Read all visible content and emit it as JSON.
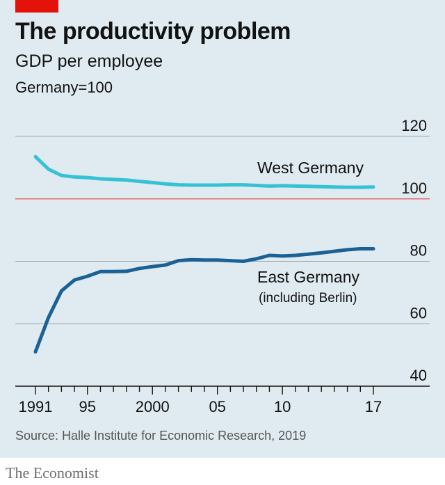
{
  "header": {
    "title": "The productivity problem",
    "subtitle": "GDP per employee",
    "unit": "Germany=100"
  },
  "footer": {
    "source": "Source: Halle Institute for Economic Research, 2019",
    "brand": "The Economist"
  },
  "colors": {
    "panel": "#e0ebf1",
    "accent_red": "#e3120b",
    "west": "#36c2d5",
    "east": "#1b6196",
    "reference_line": "#e86a6a",
    "grid": "#9aa6ad",
    "text": "#121212"
  },
  "chart_data": {
    "type": "line",
    "x_range": [
      1991,
      2017
    ],
    "y_range": [
      40,
      120
    ],
    "y_ticks": [
      40,
      60,
      80,
      100,
      120
    ],
    "y_tick_labels": [
      "40",
      "60",
      "80",
      "100",
      "120"
    ],
    "x_tick_labels": [
      {
        "year": 1991,
        "label": "1991"
      },
      {
        "year": 1995,
        "label": "95"
      },
      {
        "year": 2000,
        "label": "2000"
      },
      {
        "year": 2005,
        "label": "05"
      },
      {
        "year": 2010,
        "label": "10"
      },
      {
        "year": 2017,
        "label": "17"
      }
    ],
    "reference_value": 100,
    "series": [
      {
        "name": "West Germany",
        "label_lines": [
          "West Germany"
        ],
        "x": [
          1991,
          1992,
          1993,
          1994,
          1995,
          1996,
          1997,
          1998,
          1999,
          2000,
          2001,
          2002,
          2003,
          2004,
          2005,
          2006,
          2007,
          2008,
          2009,
          2010,
          2011,
          2012,
          2013,
          2014,
          2015,
          2016,
          2017
        ],
        "values": [
          113.5,
          109.5,
          107.5,
          107.0,
          106.8,
          106.4,
          106.2,
          106.0,
          105.6,
          105.2,
          104.8,
          104.5,
          104.4,
          104.4,
          104.4,
          104.5,
          104.5,
          104.3,
          104.1,
          104.2,
          104.1,
          104.0,
          103.9,
          103.8,
          103.7,
          103.7,
          103.8
        ]
      },
      {
        "name": "East Germany",
        "label_lines": [
          "East Germany",
          "(including Berlin)"
        ],
        "x": [
          1991,
          1992,
          1993,
          1994,
          1995,
          1996,
          1997,
          1998,
          1999,
          2000,
          2001,
          2002,
          2003,
          2004,
          2005,
          2006,
          2007,
          2008,
          2009,
          2010,
          2011,
          2012,
          2013,
          2014,
          2015,
          2016,
          2017
        ],
        "values": [
          51.0,
          62.0,
          70.5,
          74.0,
          75.2,
          76.7,
          76.7,
          76.8,
          77.7,
          78.3,
          78.8,
          80.2,
          80.5,
          80.4,
          80.4,
          80.2,
          80.0,
          80.8,
          81.9,
          81.7,
          81.9,
          82.3,
          82.7,
          83.2,
          83.7,
          84.0,
          84.0
        ]
      }
    ]
  }
}
